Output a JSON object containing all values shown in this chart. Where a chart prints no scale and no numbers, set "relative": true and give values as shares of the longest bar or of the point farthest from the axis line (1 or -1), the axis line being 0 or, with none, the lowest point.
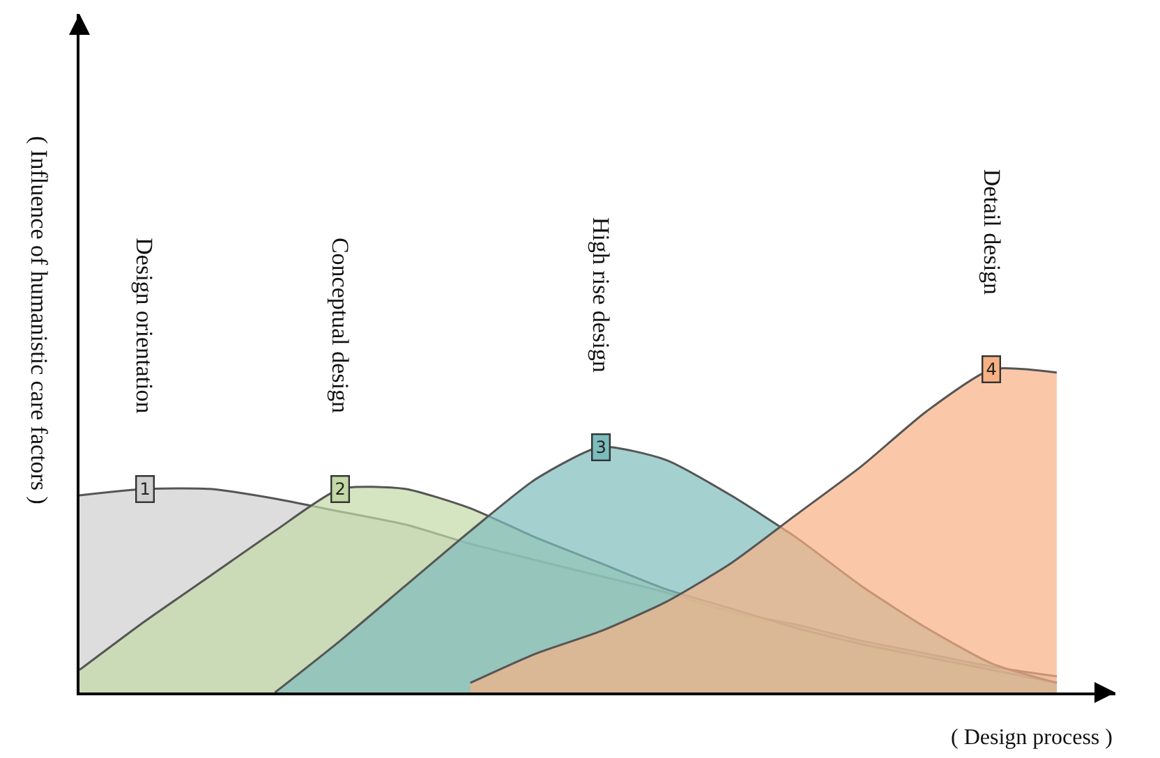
{
  "chart_data": {
    "type": "area",
    "relative": true,
    "xlabel": "( Design process )",
    "ylabel": "( Influence of humanistic care factors )",
    "categories": [
      null,
      null,
      null,
      null,
      null,
      null,
      null,
      null,
      null,
      null,
      null,
      null,
      null,
      null,
      null,
      null
    ],
    "series": [
      {
        "name": "Design orientation",
        "color": "#cfcfcf",
        "values": [
          0.61,
          0.63,
          0.63,
          0.6,
          0.56,
          0.52,
          0.46,
          0.41,
          0.36,
          0.31,
          0.25,
          0.21,
          0.16,
          0.12,
          0.08,
          0.05
        ]
      },
      {
        "name": "Conceptual design",
        "color": "#c3d9a6",
        "values": [
          0.07,
          0.22,
          0.36,
          0.5,
          0.63,
          0.63,
          0.57,
          0.48,
          0.4,
          0.32,
          0.26,
          0.2,
          0.15,
          0.11,
          0.07,
          0.03
        ]
      },
      {
        "name": "High rise design",
        "color": "#7dbcbc",
        "values": [
          null,
          null,
          null,
          0,
          0.16,
          0.33,
          0.5,
          0.66,
          0.76,
          0.72,
          0.61,
          0.48,
          0.33,
          0.2,
          0.09,
          0.03
        ]
      },
      {
        "name": "Detail design",
        "color": "#f8b184",
        "values": [
          null,
          null,
          null,
          null,
          null,
          null,
          0.03,
          0.12,
          0.19,
          0.28,
          0.4,
          0.55,
          0.7,
          0.87,
          1.0,
          0.99
        ]
      }
    ],
    "annotations": [
      "1",
      "2",
      "3",
      "4"
    ],
    "legend": false,
    "tick_labels": false
  }
}
